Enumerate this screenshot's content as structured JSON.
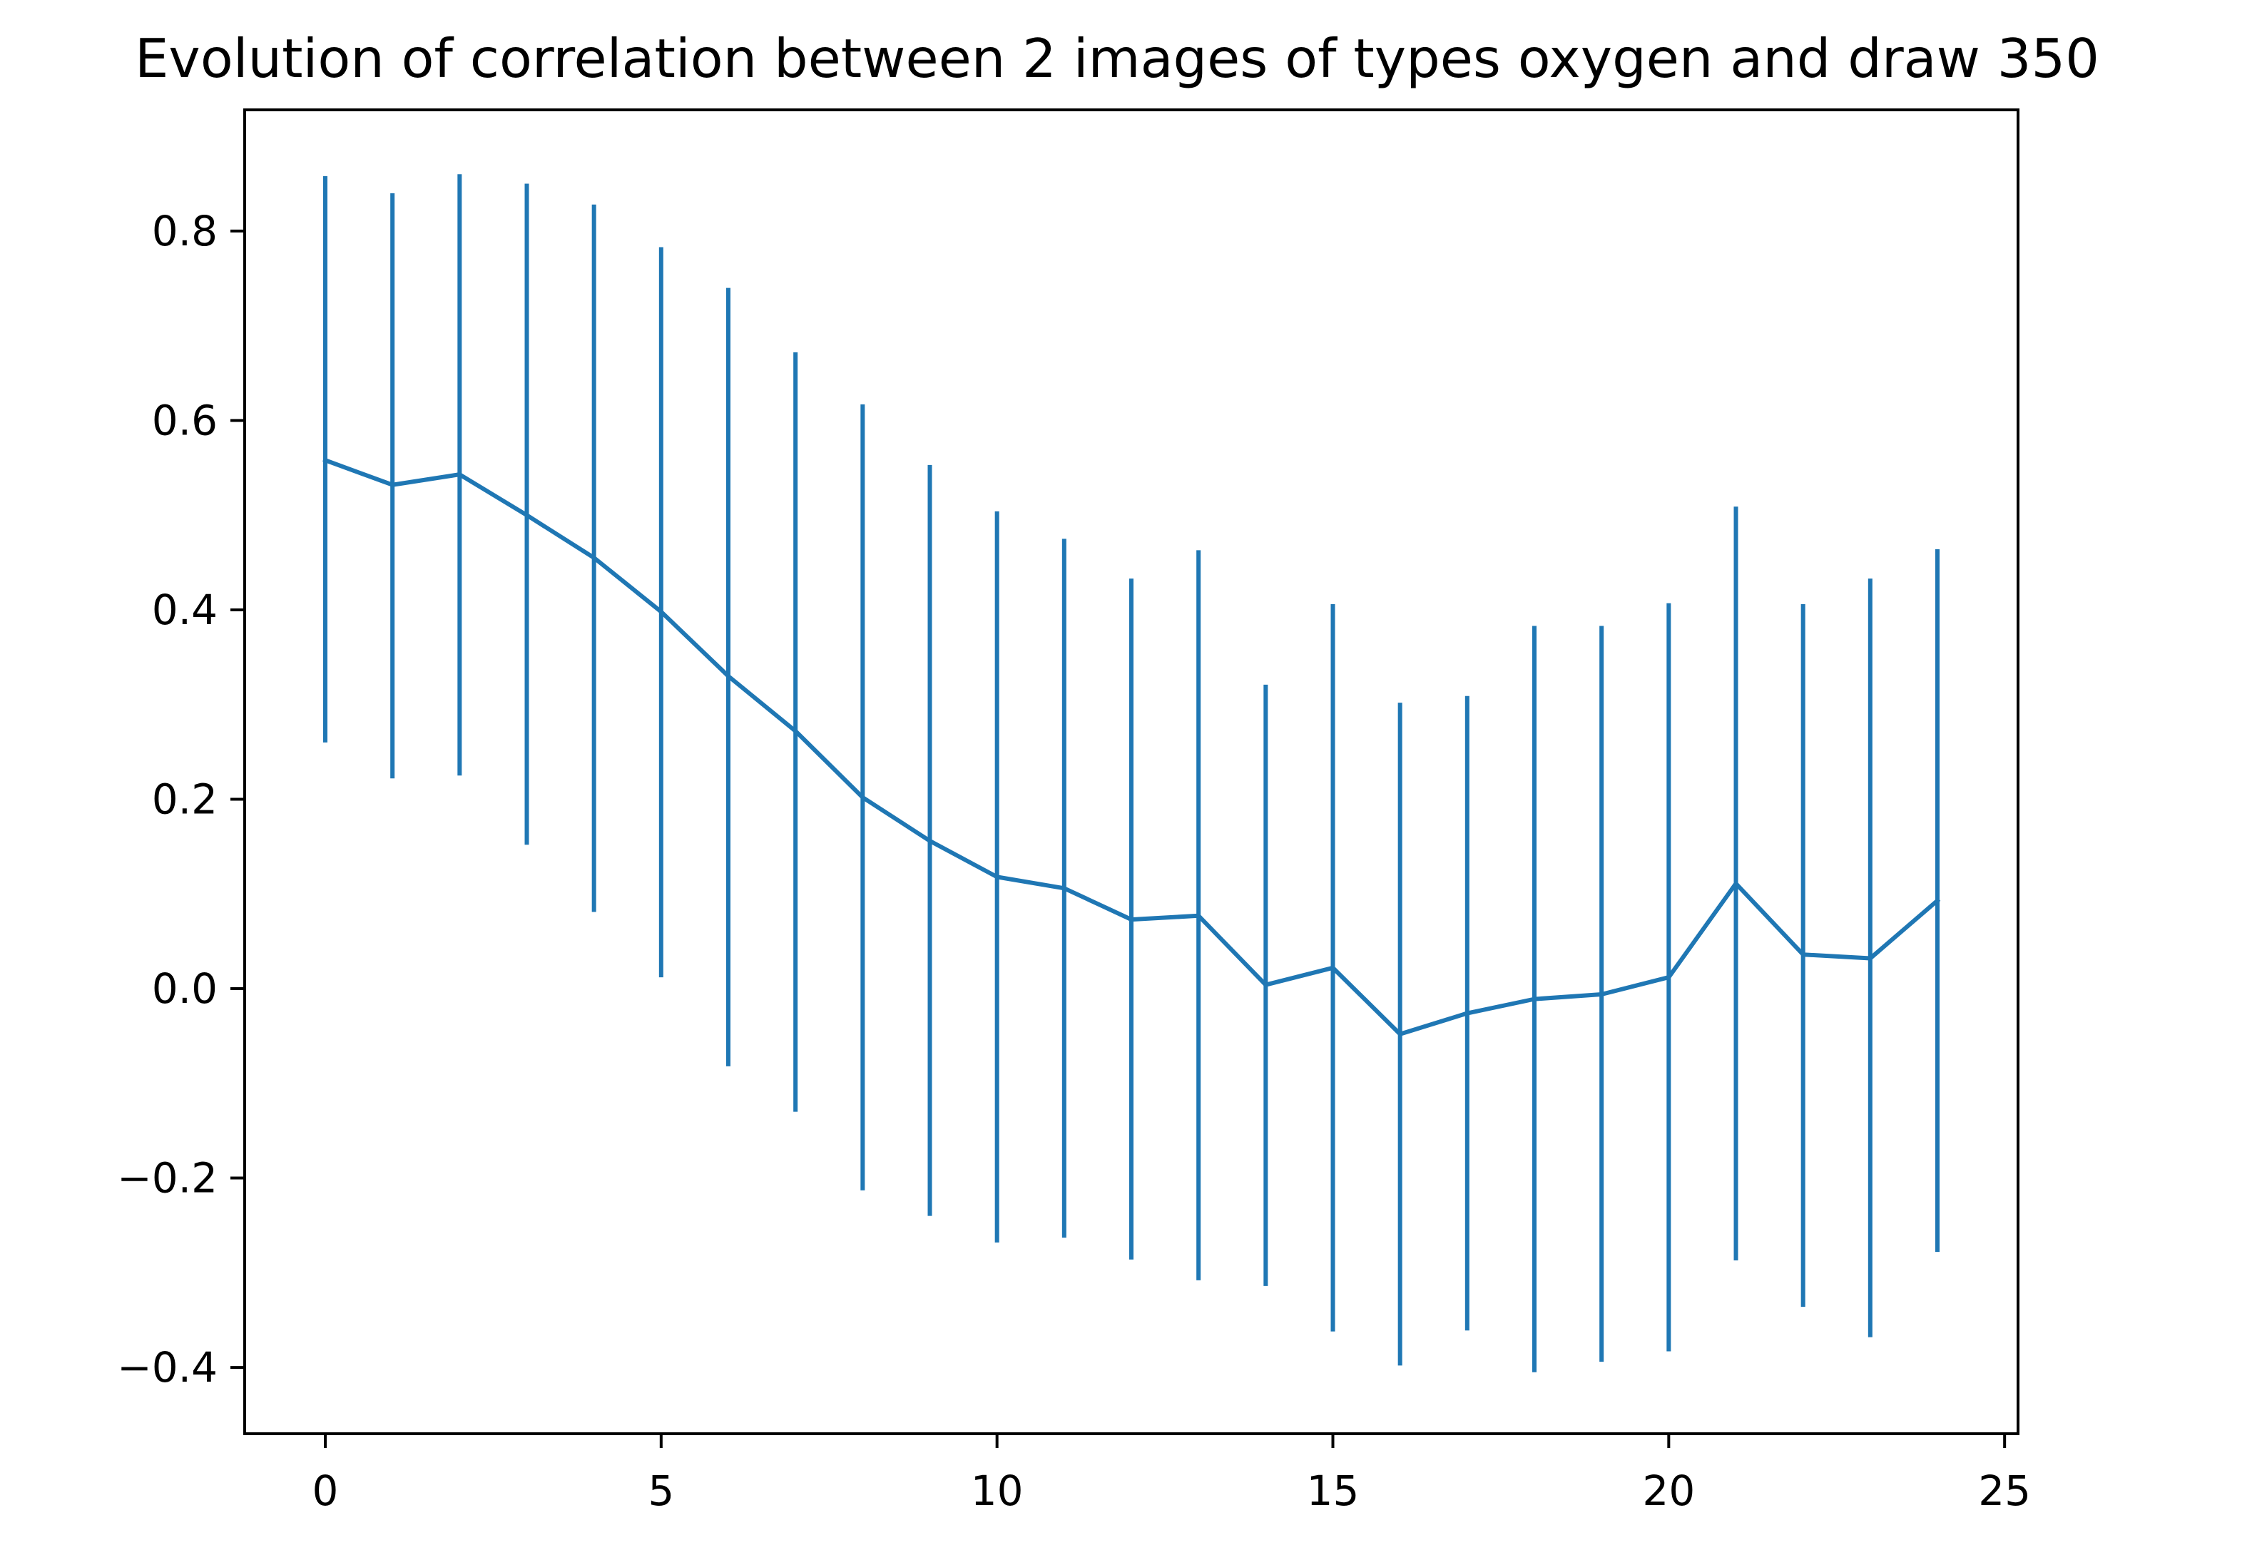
{
  "chart_data": {
    "type": "line",
    "title": "Evolution of correlation between 2 images of types oxygen and draw 350",
    "xlabel": "",
    "ylabel": "",
    "x": [
      0,
      1,
      2,
      3,
      4,
      5,
      6,
      7,
      8,
      9,
      10,
      11,
      12,
      13,
      14,
      15,
      16,
      17,
      18,
      19,
      20,
      21,
      22,
      23,
      24
    ],
    "series": [
      {
        "values": [
          0.558,
          0.532,
          0.543,
          0.5,
          0.455,
          0.398,
          0.33,
          0.272,
          0.202,
          0.156,
          0.118,
          0.106,
          0.073,
          0.077,
          0.004,
          0.022,
          -0.048,
          -0.026,
          -0.011,
          -0.006,
          0.012,
          0.111,
          0.036,
          0.032,
          0.093
        ],
        "error_low": [
          0.26,
          0.222,
          0.225,
          0.152,
          0.081,
          0.012,
          -0.082,
          -0.13,
          -0.213,
          -0.24,
          -0.268,
          -0.263,
          -0.286,
          -0.308,
          -0.314,
          -0.362,
          -0.398,
          -0.361,
          -0.405,
          -0.394,
          -0.383,
          -0.287,
          -0.336,
          -0.368,
          -0.278
        ],
        "error_high": [
          0.858,
          0.84,
          0.86,
          0.85,
          0.828,
          0.783,
          0.74,
          0.672,
          0.617,
          0.553,
          0.504,
          0.475,
          0.433,
          0.463,
          0.321,
          0.406,
          0.302,
          0.309,
          0.383,
          0.383,
          0.407,
          0.509,
          0.406,
          0.433,
          0.464
        ]
      }
    ],
    "xlim": [
      -1.2,
      25.2
    ],
    "ylim": [
      -0.47,
      0.928
    ],
    "xticks": [
      0,
      5,
      10,
      15,
      20,
      25
    ],
    "yticks": [
      -0.4,
      -0.2,
      0.0,
      0.2,
      0.4,
      0.6,
      0.8
    ],
    "xtick_labels": [
      "0",
      "5",
      "10",
      "15",
      "20",
      "25"
    ],
    "ytick_labels": [
      "−0.4",
      "−0.2",
      "0.0",
      "0.2",
      "0.4",
      "0.6",
      "0.8"
    ],
    "grid": false,
    "legend": false,
    "line_color": "#1f77b4"
  }
}
